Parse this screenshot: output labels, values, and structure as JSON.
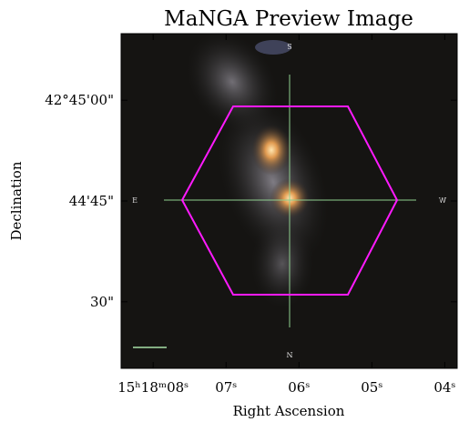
{
  "chart_data": {
    "type": "image",
    "title": "MaNGA Preview Image",
    "xlabel": "Right Ascension",
    "ylabel": "Declination",
    "xlim": [
      8.44,
      3.83
    ],
    "xticks": [
      {
        "value": 8,
        "label": "15ʰ18ᵐ08ˢ"
      },
      {
        "value": 7,
        "label": "07ˢ"
      },
      {
        "value": 6,
        "label": "06ˢ"
      },
      {
        "value": 5,
        "label": "05ˢ"
      },
      {
        "value": 4,
        "label": "04ˢ"
      }
    ],
    "ylim": [
      20.1,
      69.9
    ],
    "yticks": [
      {
        "value": 60,
        "label": "42°45'00\""
      },
      {
        "value": 45,
        "label": "44'45\""
      },
      {
        "value": 30,
        "label": "30\""
      }
    ],
    "compass": [
      "S",
      "E",
      "W",
      "N"
    ]
  }
}
